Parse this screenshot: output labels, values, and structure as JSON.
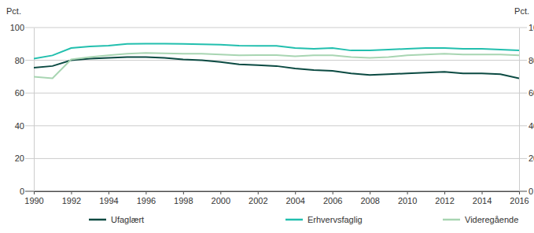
{
  "chart_data": {
    "type": "line",
    "y_label": "Pct.",
    "x": [
      1990,
      1991,
      1992,
      1993,
      1994,
      1995,
      1996,
      1997,
      1998,
      1999,
      2000,
      2001,
      2002,
      2003,
      2004,
      2005,
      2006,
      2007,
      2008,
      2009,
      2010,
      2011,
      2012,
      2013,
      2014,
      2015,
      2016
    ],
    "xlim": [
      1990,
      2016
    ],
    "xticks": [
      1990,
      1992,
      1994,
      1996,
      1998,
      2000,
      2002,
      2004,
      2006,
      2008,
      2010,
      2012,
      2014,
      2016
    ],
    "ylim": [
      0,
      100
    ],
    "yticks": [
      0,
      20,
      40,
      60,
      80,
      100
    ],
    "grid": true,
    "legend": "bottom",
    "series": [
      {
        "name": "Ufaglært",
        "color": "#0b4a42",
        "values": [
          75.5,
          76.5,
          80,
          81,
          81.5,
          82,
          82,
          81.5,
          80.5,
          80,
          79,
          77.5,
          77,
          76.5,
          75,
          74,
          73.5,
          72,
          71,
          71.5,
          72,
          72.5,
          73,
          72,
          72,
          71.5,
          69
        ]
      },
      {
        "name": "Erhvervsfaglig",
        "color": "#22bfae",
        "values": [
          81,
          83,
          87.5,
          88.5,
          89,
          90,
          90.2,
          90.2,
          90,
          89.8,
          89.5,
          89,
          88.8,
          88.8,
          87.5,
          87,
          87.5,
          86,
          86,
          86.5,
          87,
          87.5,
          87.5,
          87,
          87,
          86.5,
          86
        ]
      },
      {
        "name": "Videregående",
        "color": "#a8d5b2",
        "values": [
          70,
          69,
          80.5,
          82,
          83,
          84,
          84.5,
          84.2,
          84,
          84,
          83.5,
          83,
          83.2,
          83.2,
          82.5,
          83,
          83,
          82,
          81.5,
          82,
          83,
          83.5,
          84,
          83.5,
          83.5,
          83.5,
          83
        ]
      }
    ]
  }
}
